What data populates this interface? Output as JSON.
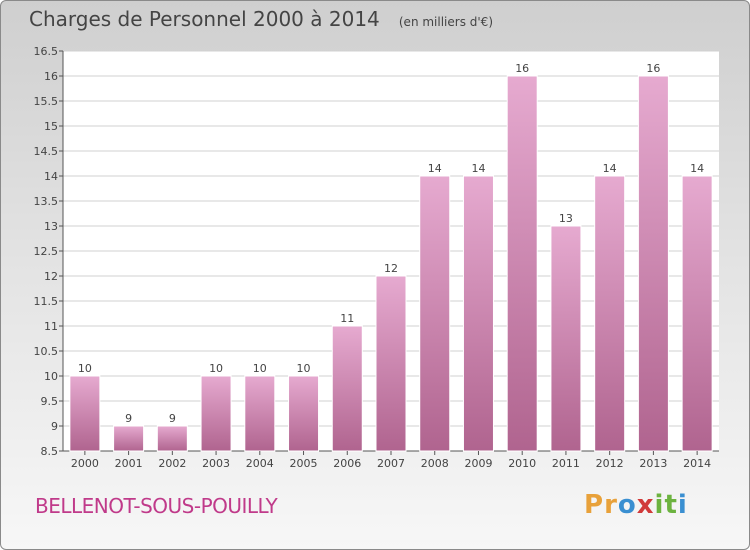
{
  "title": "Charges de Personnel 2000 à 2014",
  "subtitle": "(en milliers d'€)",
  "commune": "BELLENOT-SOUS-POUILLY",
  "logo": {
    "letters": [
      "P",
      "r",
      "o",
      "x",
      "i",
      "t",
      "i"
    ],
    "colors": [
      "#e8a13a",
      "#e8a13a",
      "#3a8fd1",
      "#d13a3a",
      "#6cb33f",
      "#6cb33f",
      "#3a8fd1"
    ]
  },
  "colors": {
    "bar_top": "#e6aad0",
    "bar_bottom": "#b0648f",
    "plot_bg": "#ffffff",
    "grid": "#d0d0d0",
    "axis": "#555555"
  },
  "chart_data": {
    "type": "bar",
    "title": "Charges de Personnel 2000 à 2014",
    "subtitle": "(en milliers d'€)",
    "categories": [
      "2000",
      "2001",
      "2002",
      "2003",
      "2004",
      "2005",
      "2006",
      "2007",
      "2008",
      "2009",
      "2010",
      "2011",
      "2012",
      "2013",
      "2014"
    ],
    "values": [
      10,
      9,
      9,
      10,
      10,
      10,
      11,
      12,
      14,
      14,
      16,
      13,
      14,
      16,
      14
    ],
    "ylim": [
      8.5,
      16.5
    ],
    "yticks": [
      "8.5",
      "9",
      "9.5",
      "10",
      "10.5",
      "11",
      "11.5",
      "12",
      "12.5",
      "13",
      "13.5",
      "14",
      "14.5",
      "15",
      "15.5",
      "16",
      "16.5"
    ],
    "grid": true,
    "xlabel": "",
    "ylabel": ""
  }
}
